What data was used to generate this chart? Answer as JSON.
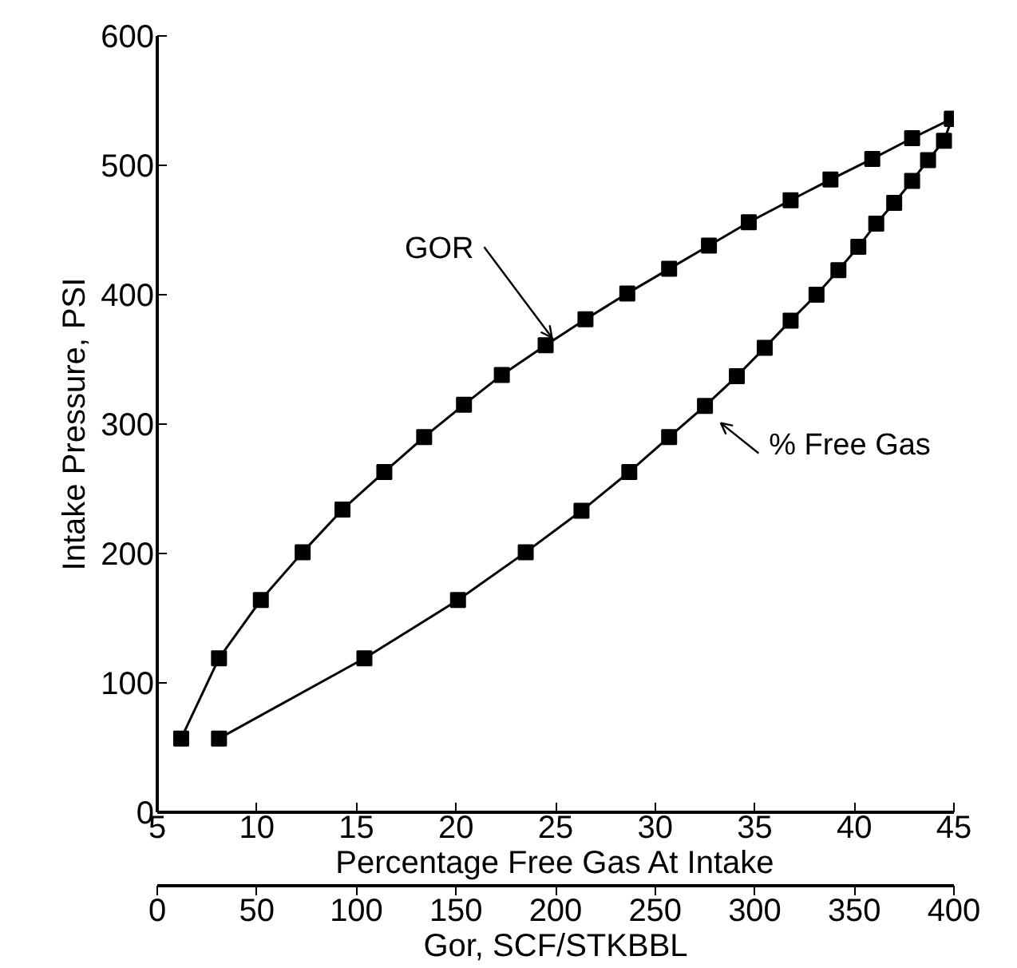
{
  "chart_data": {
    "type": "line",
    "xlabel": "Percentage Free Gas At Intake",
    "ylabel": "Intake Pressure, PSI",
    "x2label": "Gor, SCF/STKBBL",
    "xlim": [
      5,
      45
    ],
    "xticks": [
      5,
      10,
      15,
      20,
      25,
      30,
      35,
      40,
      45
    ],
    "ylim": [
      0,
      600
    ],
    "yticks": [
      0,
      100,
      200,
      300,
      400,
      500,
      600
    ],
    "x2lim": [
      0,
      400
    ],
    "x2ticks": [
      0,
      50,
      100,
      150,
      200,
      250,
      300,
      350,
      400
    ],
    "series": [
      {
        "name": "GOR",
        "color": "#000000",
        "axis": "x2",
        "x": [
          12,
          31,
          52,
          73,
          93,
          114,
          134,
          154,
          173,
          195,
          215,
          236,
          257,
          277,
          297,
          318,
          338,
          359,
          379,
          399
        ],
        "values": [
          57,
          119,
          164,
          201,
          234,
          263,
          290,
          315,
          338,
          361,
          381,
          401,
          420,
          438,
          456,
          473,
          489,
          505,
          521,
          536
        ]
      },
      {
        "name": "% Free Gas",
        "color": "#000000",
        "x": [
          8.1,
          15.4,
          20.1,
          23.5,
          26.3,
          28.7,
          30.7,
          32.5,
          34.1,
          35.5,
          36.8,
          38.1,
          39.2,
          40.2,
          41.1,
          42.0,
          42.9,
          43.7,
          44.5,
          44.9
        ],
        "values": [
          57,
          119,
          164,
          201,
          233,
          263,
          290,
          314,
          337,
          359,
          380,
          400,
          419,
          437,
          455,
          471,
          488,
          504,
          519,
          536
        ]
      }
    ],
    "marker": "square",
    "line_style": "solid",
    "grid": false
  }
}
